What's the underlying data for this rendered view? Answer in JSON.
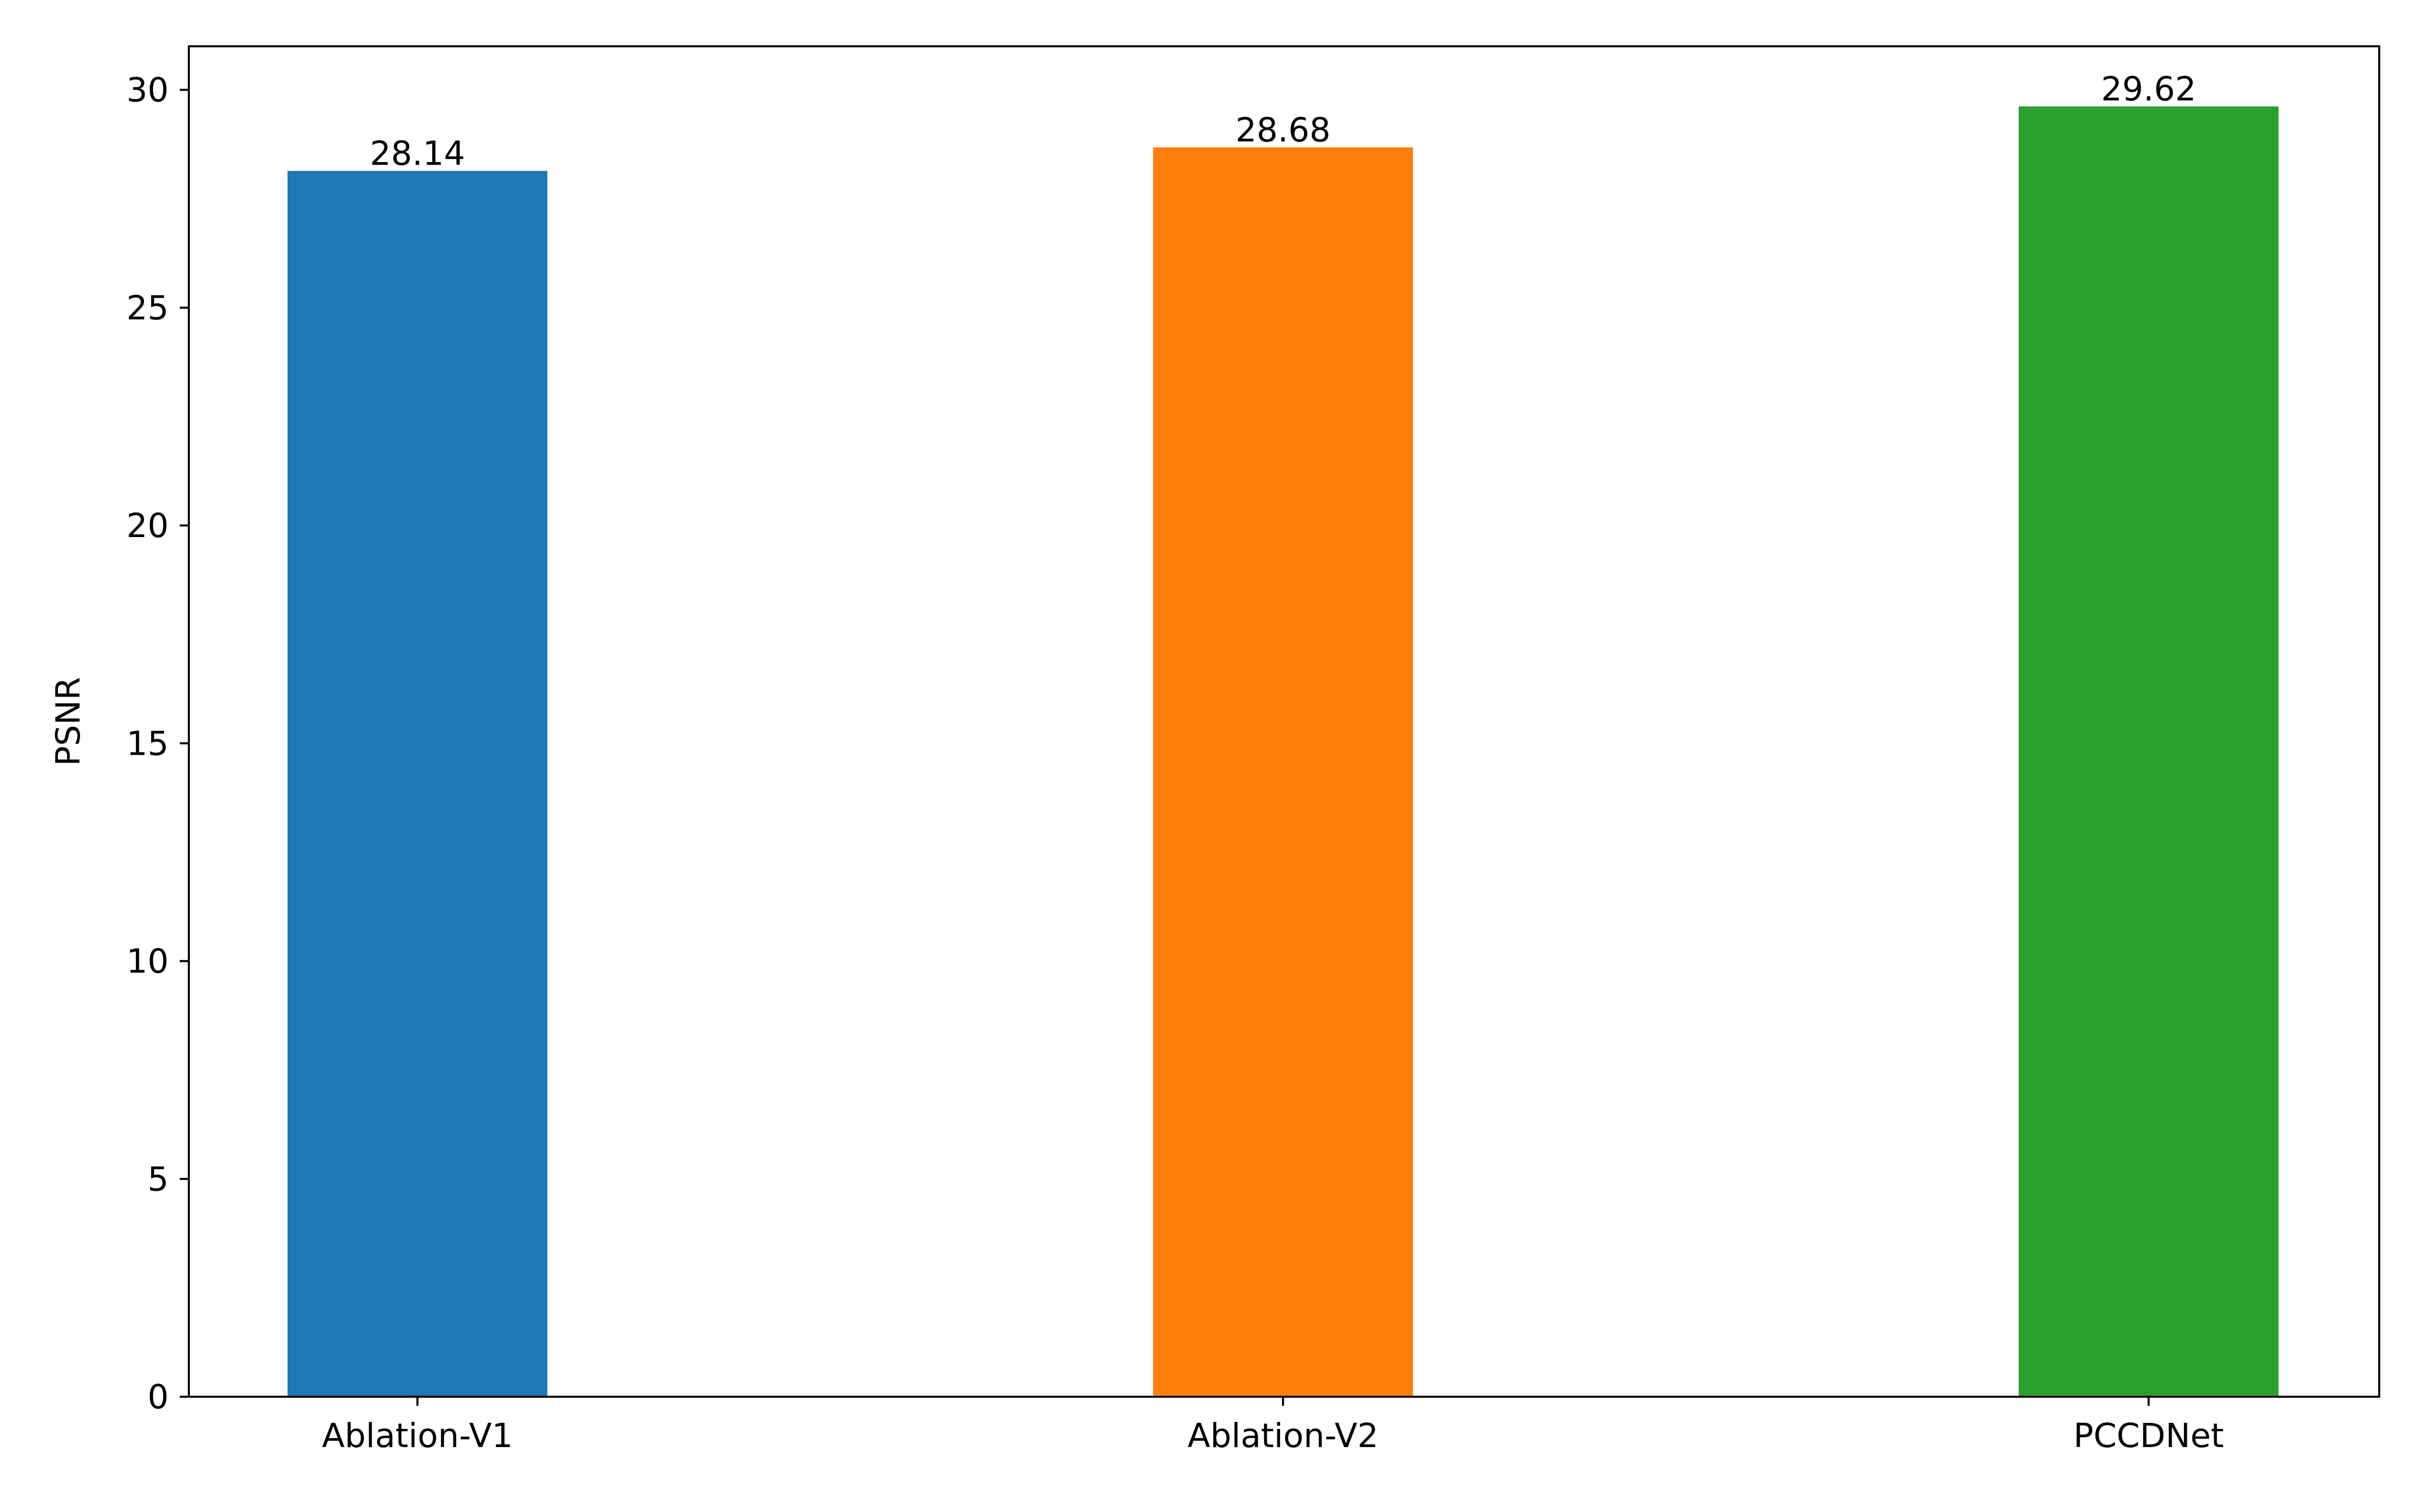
{
  "chart_data": {
    "type": "bar",
    "title": "",
    "xlabel": "",
    "ylabel": "PSNR",
    "categories": [
      "Ablation-V1",
      "Ablation-V2",
      "PCCDNet"
    ],
    "values": [
      28.14,
      28.68,
      29.62
    ],
    "data_labels": [
      "28.14",
      "28.68",
      "29.62"
    ],
    "colors": [
      "#1f77b4",
      "#ff7f0e",
      "#2ca02c"
    ],
    "ylim": [
      0,
      31
    ],
    "yticks": [
      0,
      5,
      10,
      15,
      20,
      25,
      30
    ],
    "ytick_labels": [
      "0",
      "5",
      "10",
      "15",
      "20",
      "25",
      "30"
    ],
    "grid": false,
    "legend": "none"
  }
}
